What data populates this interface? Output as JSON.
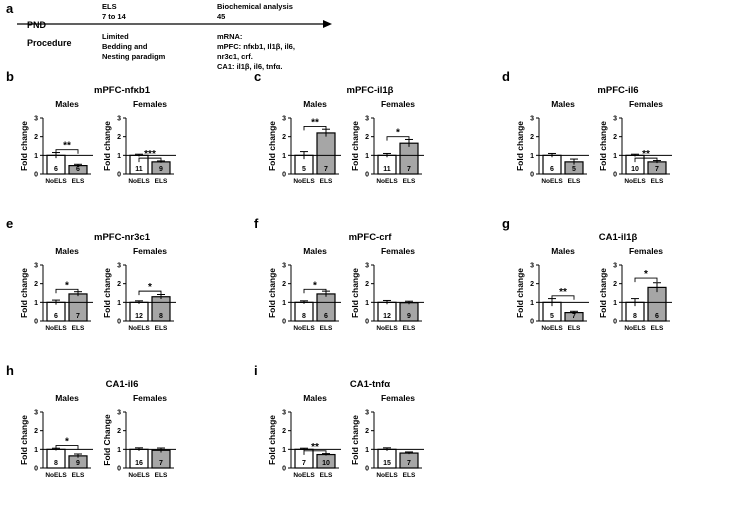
{
  "timeline": {
    "letter": "a",
    "pnd_label": "PND",
    "procedure_label": "Procedure",
    "els_head": [
      "ELS",
      "7 to 14"
    ],
    "bio_head": [
      "Biochemical analysis",
      "45"
    ],
    "els_proc": [
      "Limited",
      "Bedding and",
      "Nesting paradigm"
    ],
    "mrna_lines": [
      "mRNA:",
      "mPFC: nfκb1, Il1β, il6,",
      "nr3c1, crf.",
      "CA1: il1β, il6, tnfα."
    ]
  },
  "common": {
    "ylabel": "Fold change",
    "categories": [
      "NoELS",
      "ELS"
    ],
    "bar_colors": [
      "#ffffff",
      "#a6a6a6"
    ],
    "reference_line": 1
  },
  "chart_data": [
    {
      "letter": "b",
      "title": "mPFC-nfκb1",
      "type": "bar",
      "ylabel": "Fold change",
      "subplots": [
        {
          "sex": "Males",
          "ylabel": "Fold change",
          "ylim": [
            0,
            3
          ],
          "yticks": [
            0,
            1,
            2,
            3
          ],
          "categories": [
            "NoELS",
            "ELS"
          ],
          "values": [
            1.0,
            0.45
          ],
          "errors": [
            0.15,
            0.07
          ],
          "n": [
            "6",
            "6"
          ],
          "sig": "**",
          "sig_height": 1.3
        },
        {
          "sex": "Females",
          "ylabel": "Fold change",
          "ylim": [
            0,
            3
          ],
          "yticks": [
            0,
            1,
            2,
            3
          ],
          "categories": [
            "NoELS",
            "ELS"
          ],
          "values": [
            1.0,
            0.65
          ],
          "errors": [
            0.06,
            0.05
          ],
          "n": [
            "11",
            "9"
          ],
          "sig": "***",
          "sig_height": 0.85
        }
      ]
    },
    {
      "letter": "c",
      "title": "mPFC-il1β",
      "type": "bar",
      "ylabel": "Fold change",
      "subplots": [
        {
          "sex": "Males",
          "ylabel": "Fold change",
          "ylim": [
            0,
            3
          ],
          "yticks": [
            0,
            1,
            2,
            3
          ],
          "categories": [
            "NoELS",
            "ELS"
          ],
          "values": [
            1.0,
            2.2
          ],
          "errors": [
            0.2,
            0.2
          ],
          "n": [
            "5",
            "7"
          ],
          "sig": "**",
          "sig_height": 2.55
        },
        {
          "sex": "Females",
          "ylabel": "Fold change",
          "ylim": [
            0,
            3
          ],
          "yticks": [
            0,
            1,
            2,
            3
          ],
          "categories": [
            "NoELS",
            "ELS"
          ],
          "values": [
            1.0,
            1.65
          ],
          "errors": [
            0.1,
            0.2
          ],
          "n": [
            "11",
            "7"
          ],
          "sig": "*",
          "sig_height": 2.0
        }
      ]
    },
    {
      "letter": "d",
      "title": "mPFC-il6",
      "type": "bar",
      "ylabel": "Fold change",
      "subplots": [
        {
          "sex": "Males",
          "ylabel": "Fold change",
          "ylim": [
            0,
            3
          ],
          "yticks": [
            0,
            1,
            2,
            3
          ],
          "categories": [
            "NoELS",
            "ELS"
          ],
          "values": [
            1.0,
            0.65
          ],
          "errors": [
            0.1,
            0.15
          ],
          "n": [
            "6",
            "5"
          ],
          "sig": "",
          "sig_height": 0
        },
        {
          "sex": "Females",
          "ylabel": "Fold change",
          "ylim": [
            0,
            3
          ],
          "yticks": [
            0,
            1,
            2,
            3
          ],
          "categories": [
            "NoELS",
            "ELS"
          ],
          "values": [
            1.0,
            0.65
          ],
          "errors": [
            0.06,
            0.07
          ],
          "n": [
            "10",
            "7"
          ],
          "sig": "**",
          "sig_height": 0.85
        }
      ]
    },
    {
      "letter": "e",
      "title": "mPFC-nr3c1",
      "type": "bar",
      "ylabel": "Fold change",
      "subplots": [
        {
          "sex": "Males",
          "ylabel": "Fold change",
          "ylim": [
            0,
            3
          ],
          "yticks": [
            0,
            1,
            2,
            3
          ],
          "categories": [
            "NoELS",
            "ELS"
          ],
          "values": [
            1.0,
            1.45
          ],
          "errors": [
            0.12,
            0.12
          ],
          "n": [
            "6",
            "7"
          ],
          "sig": "*",
          "sig_height": 1.7
        },
        {
          "sex": "Females",
          "ylabel": "Fold change",
          "ylim": [
            0,
            3
          ],
          "yticks": [
            0,
            1,
            2,
            3
          ],
          "categories": [
            "NoELS",
            "ELS"
          ],
          "values": [
            1.0,
            1.3
          ],
          "errors": [
            0.08,
            0.12
          ],
          "n": [
            "12",
            "8"
          ],
          "sig": "*",
          "sig_height": 1.6
        }
      ]
    },
    {
      "letter": "f",
      "title": "mPFC-crf",
      "type": "bar",
      "ylabel": "Fold change",
      "subplots": [
        {
          "sex": "Males",
          "ylabel": "Fold change",
          "ylim": [
            0,
            3
          ],
          "yticks": [
            0,
            1,
            2,
            3
          ],
          "categories": [
            "NoELS",
            "ELS"
          ],
          "values": [
            1.0,
            1.45
          ],
          "errors": [
            0.08,
            0.15
          ],
          "n": [
            "8",
            "6"
          ],
          "sig": "*",
          "sig_height": 1.7
        },
        {
          "sex": "Females",
          "ylabel": "Fold change",
          "ylim": [
            0,
            3
          ],
          "yticks": [
            0,
            1,
            2,
            3
          ],
          "categories": [
            "NoELS",
            "ELS"
          ],
          "values": [
            1.0,
            0.98
          ],
          "errors": [
            0.1,
            0.08
          ],
          "n": [
            "12",
            "9"
          ],
          "sig": "",
          "sig_height": 0
        }
      ]
    },
    {
      "letter": "g",
      "title": "CA1-il1β",
      "type": "bar",
      "ylabel": "Fold change",
      "subplots": [
        {
          "sex": "Males",
          "ylabel": "Fold change",
          "ylim": [
            0,
            3
          ],
          "yticks": [
            0,
            1,
            2,
            3
          ],
          "categories": [
            "NoELS",
            "ELS"
          ],
          "values": [
            1.0,
            0.45
          ],
          "errors": [
            0.2,
            0.07
          ],
          "n": [
            "5",
            "7"
          ],
          "sig": "**",
          "sig_height": 1.35
        },
        {
          "sex": "Females",
          "ylabel": "Fold change",
          "ylim": [
            0,
            3
          ],
          "yticks": [
            0,
            1,
            2,
            3
          ],
          "categories": [
            "NoELS",
            "ELS"
          ],
          "values": [
            1.0,
            1.8
          ],
          "errors": [
            0.2,
            0.25
          ],
          "n": [
            "8",
            "6"
          ],
          "sig": "*",
          "sig_height": 2.3
        }
      ]
    },
    {
      "letter": "h",
      "title": "CA1-il6",
      "type": "bar",
      "ylabel": "Fold change",
      "subplots": [
        {
          "sex": "Males",
          "ylabel": "Fold change",
          "ylim": [
            0,
            3
          ],
          "yticks": [
            0,
            1,
            2,
            3
          ],
          "categories": [
            "NoELS",
            "ELS"
          ],
          "values": [
            1.0,
            0.65
          ],
          "errors": [
            0.06,
            0.1
          ],
          "n": [
            "8",
            "9"
          ],
          "sig": "*",
          "sig_height": 1.2
        },
        {
          "sex": "Females",
          "ylabel": "Fold  Change",
          "ylim": [
            0,
            3
          ],
          "yticks": [
            0,
            1,
            2,
            3
          ],
          "categories": [
            "NoELS",
            "ELS"
          ],
          "values": [
            1.0,
            0.95
          ],
          "errors": [
            0.08,
            0.12
          ],
          "n": [
            "16",
            "7"
          ],
          "sig": "",
          "sig_height": 0
        }
      ]
    },
    {
      "letter": "i",
      "title": "CA1-tnfα",
      "type": "bar",
      "ylabel": "Fold change",
      "subplots": [
        {
          "sex": "Males",
          "ylabel": "Fold change",
          "ylim": [
            0,
            3
          ],
          "yticks": [
            0,
            1,
            2,
            3
          ],
          "categories": [
            "NoELS",
            "ELS"
          ],
          "values": [
            1.0,
            0.72
          ],
          "errors": [
            0.06,
            0.05
          ],
          "n": [
            "7",
            "10"
          ],
          "sig": "**",
          "sig_height": 0.92
        },
        {
          "sex": "Females",
          "ylabel": "Fold change",
          "ylim": [
            0,
            3
          ],
          "yticks": [
            0,
            1,
            2,
            3
          ],
          "categories": [
            "NoELS",
            "ELS"
          ],
          "values": [
            1.0,
            0.8
          ],
          "errors": [
            0.08,
            0.06
          ],
          "n": [
            "15",
            "7"
          ],
          "sig": "",
          "sig_height": 0
        }
      ]
    }
  ]
}
